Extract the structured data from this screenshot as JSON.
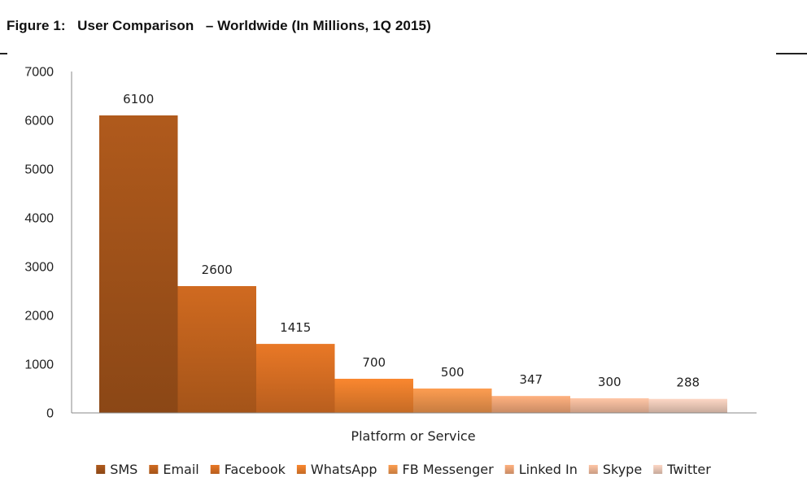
{
  "figure": {
    "title": "Figure 1:   User Comparison   – Worldwide (In Millions, 1Q 2015)"
  },
  "chart_data": {
    "type": "bar",
    "title": "Figure 1:   User Comparison   – Worldwide (In Millions, 1Q 2015)",
    "xlabel": "Platform or Service",
    "ylabel": "",
    "ylim": [
      0,
      7000
    ],
    "yticks": [
      0,
      1000,
      2000,
      3000,
      4000,
      5000,
      6000,
      7000
    ],
    "grid": false,
    "legend_position": "bottom",
    "series": [
      {
        "name": "SMS",
        "value": 6100,
        "color": "#a9571b"
      },
      {
        "name": "Email",
        "value": 2600,
        "color": "#c8661f"
      },
      {
        "name": "Facebook",
        "value": 1415,
        "color": "#e07325"
      },
      {
        "name": "WhatsApp",
        "value": 700,
        "color": "#f0822d"
      },
      {
        "name": "FB Messenger",
        "value": 500,
        "color": "#f3974e"
      },
      {
        "name": "Linked In",
        "value": 347,
        "color": "#f5aa7a"
      },
      {
        "name": "Skype",
        "value": 300,
        "color": "#f6bea0"
      },
      {
        "name": "Twitter",
        "value": 288,
        "color": "#f3cfbd"
      }
    ]
  }
}
